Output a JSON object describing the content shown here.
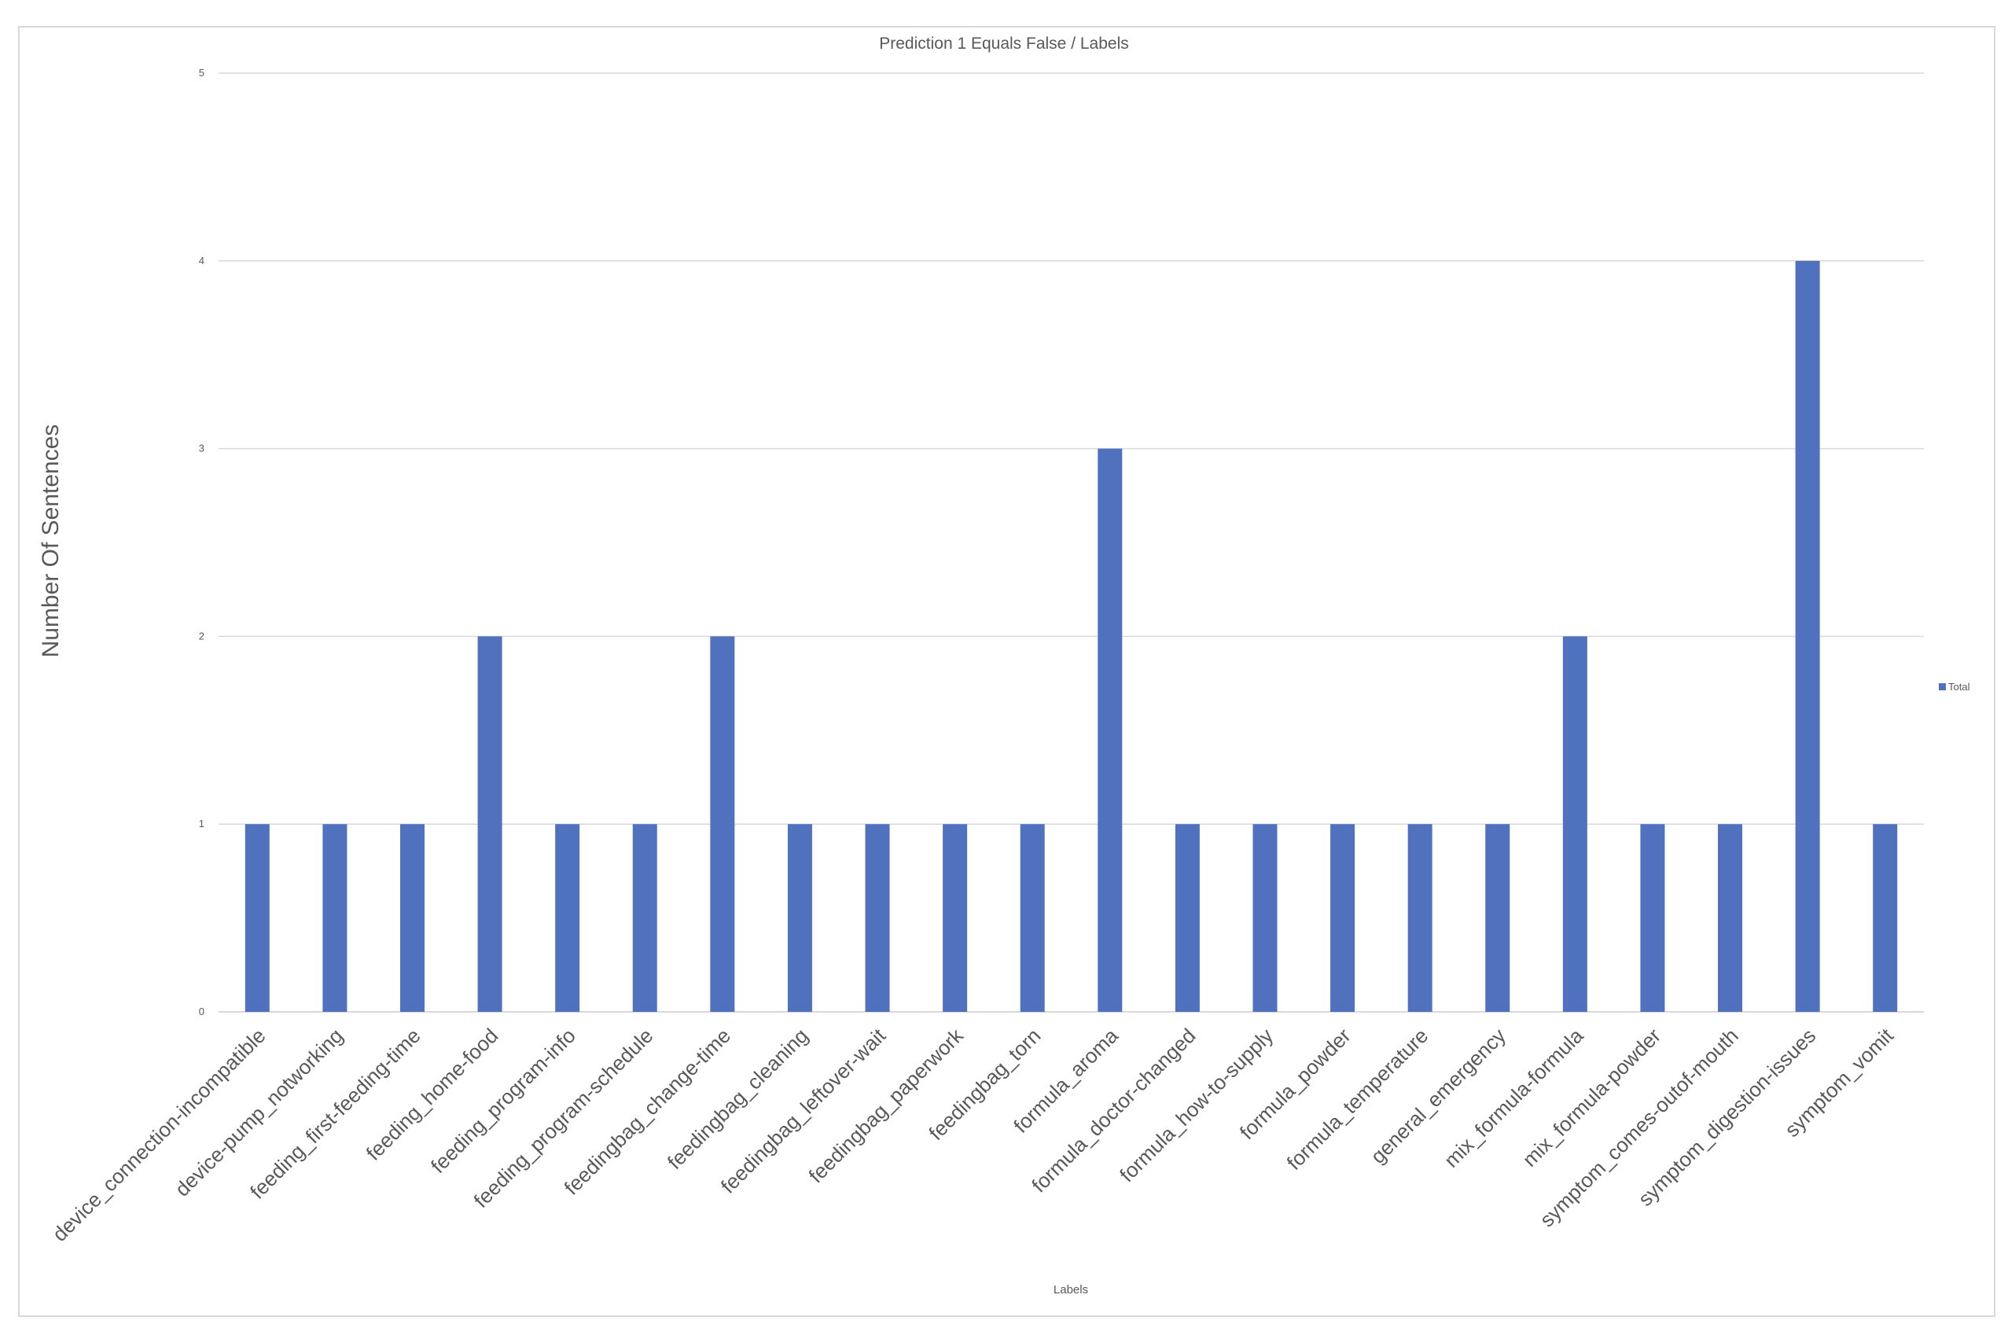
{
  "chart_data": {
    "type": "bar",
    "title": "Prediction 1 Equals False / Labels",
    "xlabel": "Labels",
    "ylabel": "Number Of Sentences",
    "ylim": [
      0,
      5
    ],
    "yticks": [
      "0",
      "1",
      "2",
      "3",
      "4",
      "5"
    ],
    "grid": true,
    "legend_position": "right",
    "bar_color": "#4f71be",
    "categories": [
      "device_connection-incompatible",
      "device-pump_notworking",
      "feeding_first-feeding-time",
      "feeding_home-food",
      "feeding_program-info",
      "feeding_program-schedule",
      "feedingbag_change-time",
      "feedingbag_cleaning",
      "feedingbag_leftover-wait",
      "feedingbag_paperwork",
      "feedingbag_torn",
      "formula_aroma",
      "formula_doctor-changed",
      "formula_how-to-supply",
      "formula_powder",
      "formula_temperature",
      "general_emergency",
      "mix_formula-formula",
      "mix_formula-powder",
      "symptom_comes-outof-mouth",
      "symptom_digestion-issues",
      "symptom_vomit"
    ],
    "series": [
      {
        "name": "Total",
        "values": [
          1,
          1,
          1,
          2,
          1,
          1,
          2,
          1,
          1,
          1,
          1,
          3,
          1,
          1,
          1,
          1,
          1,
          2,
          1,
          1,
          4,
          1
        ]
      }
    ]
  }
}
